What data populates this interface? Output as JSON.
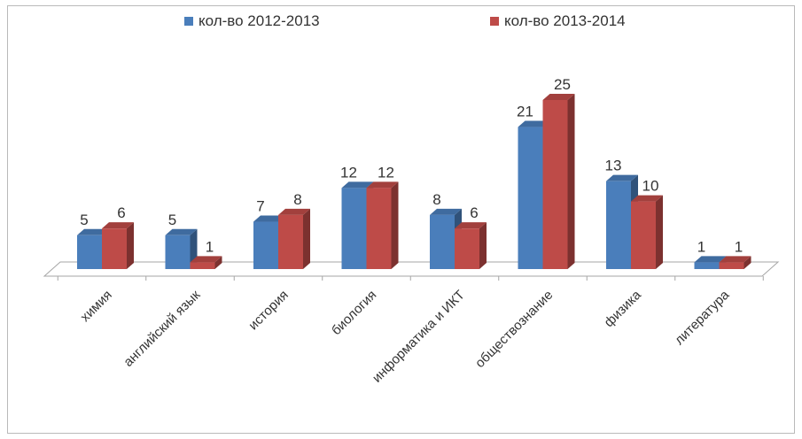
{
  "chart_data": {
    "type": "bar",
    "title": "",
    "xlabel": "",
    "ylabel": "",
    "ylim": [
      0,
      27
    ],
    "grid": false,
    "legend_position": "top",
    "categories": [
      "химия",
      "английский язык",
      "история",
      "биология",
      "информатика и ИКТ",
      "обществознание",
      "физика",
      "литература"
    ],
    "series": [
      {
        "name": "кол-во 2012-2013",
        "values": [
          5,
          5,
          7,
          12,
          8,
          21,
          13,
          1
        ],
        "color": "#4a7ebb"
      },
      {
        "name": "кол-во 2013-2014",
        "values": [
          6,
          1,
          8,
          12,
          6,
          25,
          10,
          1
        ],
        "color": "#be4b48"
      }
    ]
  }
}
